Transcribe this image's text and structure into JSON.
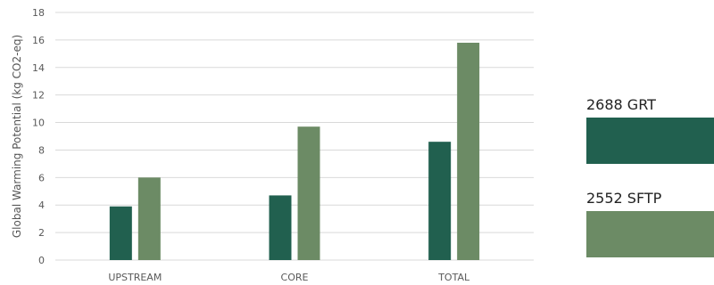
{
  "chart_data": {
    "type": "bar",
    "categories": [
      "UPSTREAM",
      "CORE",
      "TOTAL"
    ],
    "series": [
      {
        "name": "2688 GRT",
        "values": [
          3.9,
          4.7,
          8.6
        ],
        "color": "#21604f"
      },
      {
        "name": "2552 SFTP",
        "values": [
          6.0,
          9.7,
          15.8
        ],
        "color": "#6c8b65"
      }
    ],
    "ylabel": "Global Warming Potential (kg CO2-eq)",
    "xlabel": "",
    "ylim": [
      0,
      18
    ],
    "yticks": [
      0,
      2,
      4,
      6,
      8,
      10,
      12,
      14,
      16,
      18
    ],
    "grid": true,
    "legend_position": "right"
  }
}
